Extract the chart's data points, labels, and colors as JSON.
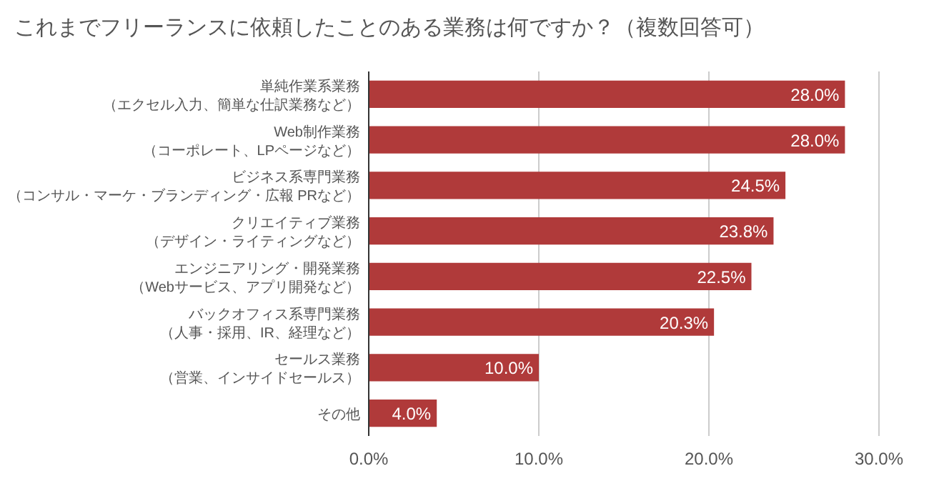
{
  "chart_data": {
    "type": "bar",
    "orientation": "horizontal",
    "title": "これまでフリーランスに依頼したことのある業務は何ですか？（複数回答可）",
    "categories": [
      "単純作業系業務（エクセル入力、簡単な仕訳業務など）",
      "Web制作業務（コーポレート、LPページなど）",
      "ビジネス系専門業務（コンサル・マーケ・ブランディング・広報 PRなど）",
      "クリエイティブ業務（デザイン・ライティングなど）",
      "エンジニアリング・開発業務（Webサービス、アプリ開発など）",
      "バックオフィス系専門業務（人事・採用、IR、経理など）",
      "セールス業務（営業、インサイドセールス）",
      "その他"
    ],
    "values": [
      28.0,
      28.0,
      24.5,
      23.8,
      22.5,
      20.3,
      10.0,
      4.0
    ],
    "value_labels": [
      "28.0%",
      "28.0%",
      "24.5%",
      "23.8%",
      "22.5%",
      "20.3%",
      "10.0%",
      "4.0%"
    ],
    "color": "#b03a3a",
    "xlim": [
      0,
      30
    ],
    "xticks": [
      {
        "value": 0,
        "label": "0.0%"
      },
      {
        "value": 10,
        "label": "10.0%"
      },
      {
        "value": 20,
        "label": "20.0%"
      },
      {
        "value": 30,
        "label": "30.0%"
      }
    ],
    "grid": "x"
  }
}
